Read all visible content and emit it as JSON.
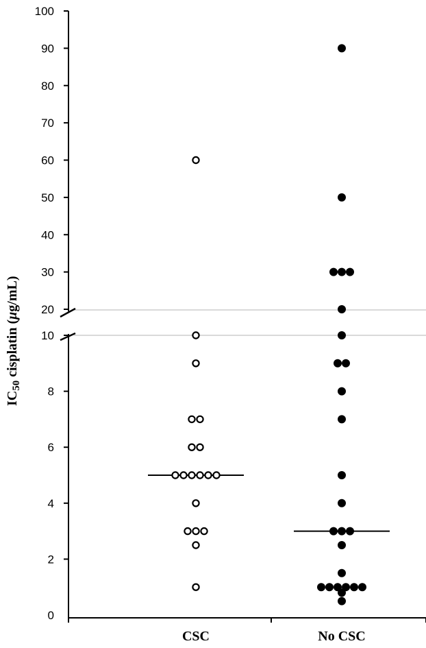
{
  "chart_data": {
    "type": "scatter",
    "ylabel": {
      "prefix": "IC",
      "subscript": "50",
      "middle": " cisplatin (",
      "mu": "μ",
      "suffix": "g/mL)"
    },
    "categories": [
      "CSC",
      "No CSC"
    ],
    "y_axis": {
      "broken": true,
      "lower_segment": {
        "ylim": [
          0,
          10
        ],
        "ticks": [
          "0",
          "2",
          "4",
          "6",
          "8",
          "10"
        ]
      },
      "upper_segment": {
        "ylim": [
          20,
          100
        ],
        "ticks": [
          "20",
          "30",
          "40",
          "50",
          "60",
          "70",
          "80",
          "90",
          "100"
        ]
      }
    },
    "series": [
      {
        "category": "CSC",
        "marker": "open-circle",
        "values": [
          60,
          10,
          9,
          7,
          7,
          6,
          6,
          5,
          5,
          5,
          5,
          5,
          5,
          4,
          3,
          3,
          3,
          2.5,
          1
        ],
        "median": 5
      },
      {
        "category": "No CSC",
        "marker": "filled-circle",
        "values": [
          90,
          50,
          30,
          30,
          30,
          20,
          10,
          9,
          9,
          8,
          7,
          5,
          4,
          3,
          3,
          3,
          2.5,
          1.5,
          1,
          1,
          1,
          1,
          1,
          1,
          0.8,
          0.5
        ],
        "median": 3
      }
    ],
    "colors": {
      "marker": "#000000",
      "axis": "#000000",
      "gap_line": "#d9d9d9"
    }
  }
}
